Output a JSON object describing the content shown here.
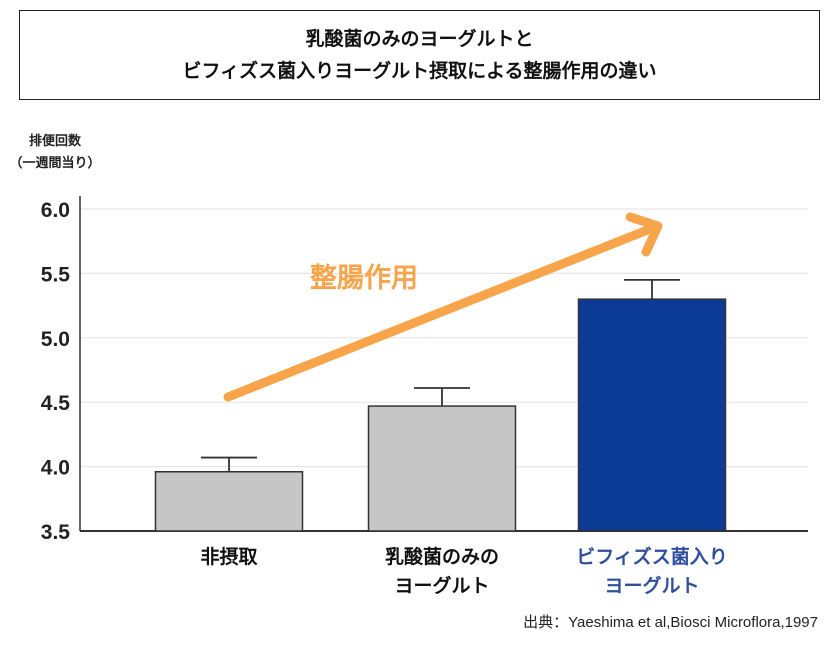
{
  "title": {
    "line1": "乳酸菌のみのヨーグルトと",
    "line2": "ビフィズス菌入りヨーグルト摂取による整腸作用の違い"
  },
  "ylabel": {
    "line1": "排便回数",
    "line2": "（一週間当り）"
  },
  "annotation": {
    "text": "整腸作用",
    "color": "#F7A44A"
  },
  "source": "出典：Yaeshima et al,Biosci Microflora,1997",
  "chart_data": {
    "type": "bar",
    "categories": [
      {
        "lines": [
          "非摂取"
        ],
        "color": "#111111"
      },
      {
        "lines": [
          "乳酸菌のみの",
          "ヨーグルト"
        ],
        "color": "#111111"
      },
      {
        "lines": [
          "ビフィズス菌入り",
          "ヨーグルト"
        ],
        "color": "#2F4F9E"
      }
    ],
    "values": [
      3.96,
      4.47,
      5.3
    ],
    "error_upper": [
      4.07,
      4.61,
      5.45
    ],
    "bar_colors": [
      "#C6C6C6",
      "#C6C6C6",
      "#0B3B94"
    ],
    "ylim": [
      3.5,
      6.0
    ],
    "yticks": [
      "3.5",
      "4.0",
      "4.5",
      "5.0",
      "5.5",
      "6.0"
    ],
    "grid": true
  }
}
